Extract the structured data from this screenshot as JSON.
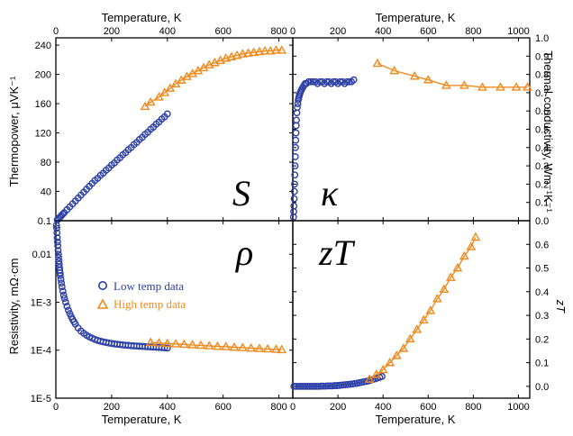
{
  "chart_data": [
    {
      "id": "S",
      "type": "scatter",
      "panel_label": "S",
      "xlabel": "Temperature, K",
      "ylabel": "Thermopower, μVK⁻¹",
      "xlim": [
        0,
        850
      ],
      "ylim": [
        0,
        250
      ],
      "xticks": [
        0,
        200,
        400,
        600,
        800
      ],
      "yticks": [
        0.1,
        40,
        80,
        120,
        160,
        200,
        240
      ],
      "yticklabels": [
        "0.1",
        "40",
        "80",
        "120",
        "160",
        "200",
        "240"
      ],
      "series": [
        {
          "color": "#2b3fa6",
          "marker": "circle",
          "line": false,
          "x": [
            5,
            10,
            15,
            20,
            25,
            30,
            40,
            50,
            60,
            70,
            80,
            90,
            100,
            110,
            120,
            130,
            140,
            150,
            160,
            170,
            180,
            190,
            200,
            210,
            220,
            230,
            240,
            250,
            260,
            270,
            280,
            290,
            300,
            310,
            320,
            330,
            340,
            350,
            360,
            370,
            380,
            390,
            400
          ],
          "y": [
            1,
            3,
            5,
            7,
            9,
            11,
            15,
            19,
            23,
            27,
            31,
            35,
            39,
            43,
            47,
            51,
            55,
            58,
            62,
            65,
            69,
            72,
            76,
            79,
            83,
            86,
            90,
            93,
            97,
            100,
            104,
            107,
            111,
            114,
            118,
            121,
            125,
            128,
            132,
            135,
            139,
            142,
            146
          ]
        },
        {
          "color": "#f08a1d",
          "marker": "triangle",
          "line": true,
          "x": [
            320,
            340,
            370,
            390,
            410,
            430,
            450,
            470,
            490,
            510,
            530,
            550,
            570,
            590,
            610,
            630,
            650,
            670,
            690,
            710,
            730,
            750,
            770,
            790,
            810
          ],
          "y": [
            156,
            162,
            169,
            175,
            181,
            187,
            192,
            197,
            201,
            205,
            209,
            213,
            216,
            219,
            222,
            224,
            226,
            228,
            229,
            230,
            231,
            232,
            232,
            233,
            233
          ]
        }
      ]
    },
    {
      "id": "kappa",
      "type": "scatter",
      "panel_label": "κ",
      "xlabel": "Temperature, K",
      "ylabel": "Thermal conductivity, Wm⁻¹K⁻¹",
      "xlim": [
        0,
        1050
      ],
      "ylim": [
        0,
        1.0
      ],
      "xticks": [
        0,
        200,
        400,
        600,
        800,
        1000
      ],
      "yticks": [
        0.0,
        0.1,
        0.2,
        0.3,
        0.4,
        0.5,
        0.6,
        0.7,
        0.8,
        0.9,
        1.0
      ],
      "yticklabels": [
        "0.0",
        "0.1",
        "0.2",
        "0.3",
        "0.4",
        "0.5",
        "0.6",
        "0.7",
        "0.8",
        "0.9",
        "1.0"
      ],
      "series": [
        {
          "color": "#2b3fa6",
          "marker": "circle",
          "line": false,
          "x": [
            3,
            4,
            5,
            6,
            7,
            8,
            9,
            10,
            11,
            12,
            13,
            14,
            15,
            16,
            18,
            20,
            22,
            24,
            26,
            28,
            30,
            33,
            36,
            40,
            45,
            50,
            55,
            60,
            70,
            80,
            90,
            100,
            110,
            120,
            130,
            140,
            150,
            160,
            170,
            180,
            190,
            200,
            210,
            220,
            230,
            240,
            250,
            260,
            270
          ],
          "y": [
            0.02,
            0.05,
            0.08,
            0.12,
            0.16,
            0.2,
            0.25,
            0.3,
            0.35,
            0.4,
            0.44,
            0.48,
            0.52,
            0.55,
            0.59,
            0.62,
            0.64,
            0.66,
            0.67,
            0.68,
            0.69,
            0.7,
            0.71,
            0.72,
            0.73,
            0.74,
            0.75,
            0.75,
            0.76,
            0.76,
            0.76,
            0.76,
            0.75,
            0.76,
            0.76,
            0.75,
            0.76,
            0.76,
            0.75,
            0.76,
            0.76,
            0.75,
            0.76,
            0.76,
            0.75,
            0.76,
            0.76,
            0.76,
            0.77
          ]
        },
        {
          "color": "#f08a1d",
          "marker": "triangle",
          "line": true,
          "x": [
            375,
            450,
            540,
            600,
            680,
            760,
            840,
            920,
            990,
            1040
          ],
          "y": [
            0.86,
            0.82,
            0.79,
            0.77,
            0.74,
            0.74,
            0.73,
            0.73,
            0.73,
            0.73
          ]
        }
      ]
    },
    {
      "id": "rho",
      "type": "scatter",
      "panel_label": "ρ",
      "xlabel": "Temperature, K",
      "ylabel": "Resistivity, mΩ·cm",
      "yscale": "log",
      "xlim": [
        0,
        850
      ],
      "ylim": [
        1e-05,
        0.05
      ],
      "xticks": [
        0,
        200,
        400,
        600,
        800
      ],
      "yticks": [
        1e-05,
        0.0001,
        0.001,
        0.01
      ],
      "yticklabels": [
        "1E-5",
        "1E-4",
        "1E-3",
        "0.01"
      ],
      "legend": {
        "position": "center",
        "entries": [
          {
            "label": "Low temp data",
            "color": "#2b3fa6",
            "marker": "circle"
          },
          {
            "label": "High temp data",
            "color": "#f08a1d",
            "marker": "triangle"
          }
        ]
      },
      "series": [
        {
          "color": "#2b3fa6",
          "marker": "circle",
          "line": false,
          "x": [
            2,
            3,
            4,
            5,
            6,
            7,
            8,
            9,
            10,
            11,
            12,
            13,
            14,
            15,
            16,
            18,
            20,
            22,
            25,
            28,
            31,
            35,
            40,
            45,
            50,
            55,
            60,
            65,
            70,
            80,
            90,
            100,
            110,
            120,
            130,
            140,
            150,
            160,
            170,
            180,
            190,
            200,
            210,
            220,
            230,
            240,
            250,
            260,
            270,
            280,
            290,
            300,
            310,
            320,
            330,
            340,
            350,
            360,
            370,
            380,
            390,
            400
          ],
          "y": [
            0.04,
            0.035,
            0.028,
            0.022,
            0.018,
            0.015,
            0.012,
            0.01,
            0.0085,
            0.0072,
            0.0062,
            0.0053,
            0.0046,
            0.0041,
            0.0036,
            0.003,
            0.0025,
            0.0021,
            0.0017,
            0.0014,
            0.0012,
            0.001,
            0.00082,
            0.00068,
            0.00058,
            0.0005,
            0.00044,
            0.00039,
            0.00035,
            0.00029,
            0.00025,
            0.000225,
            0.000205,
            0.00019,
            0.000178,
            0.000168,
            0.00016,
            0.000154,
            0.000149,
            0.000145,
            0.000141,
            0.000138,
            0.000135,
            0.000133,
            0.000131,
            0.000129,
            0.000127,
            0.000126,
            0.000124,
            0.000123,
            0.000122,
            0.000121,
            0.00012,
            0.000119,
            0.000118,
            0.000117,
            0.000116,
            0.000115,
            0.000114,
            0.000113,
            0.000112,
            0.000111
          ]
        },
        {
          "color": "#f08a1d",
          "marker": "triangle",
          "line": true,
          "x": [
            340,
            370,
            400,
            430,
            460,
            490,
            520,
            550,
            580,
            610,
            640,
            670,
            700,
            730,
            760,
            790,
            810
          ],
          "y": [
            0.000145,
            0.000141,
            0.000138,
            0.000135,
            0.000132,
            0.000129,
            0.000126,
            0.000123,
            0.00012,
            0.000118,
            0.000115,
            0.000113,
            0.00011,
            0.000108,
            0.000106,
            0.000104,
            0.000102
          ]
        }
      ]
    },
    {
      "id": "zT",
      "type": "scatter",
      "panel_label": "zT",
      "xlabel": "Temperature, K",
      "ylabel": "zT",
      "xlim": [
        0,
        1050
      ],
      "ylim": [
        -0.05,
        0.7
      ],
      "xticks": [
        0,
        200,
        400,
        600,
        800,
        1000
      ],
      "yticks": [
        0.0,
        0.1,
        0.2,
        0.3,
        0.4,
        0.5,
        0.6
      ],
      "yticklabels": [
        "0.0",
        "0.1",
        "0.2",
        "0.3",
        "0.4",
        "0.5",
        "0.6"
      ],
      "series": [
        {
          "color": "#2b3fa6",
          "marker": "circle",
          "line": false,
          "x": [
            5,
            15,
            25,
            35,
            45,
            55,
            65,
            75,
            85,
            95,
            105,
            115,
            125,
            135,
            145,
            155,
            165,
            175,
            185,
            195,
            205,
            215,
            225,
            235,
            245,
            255,
            265,
            275,
            285,
            295,
            305,
            315,
            325,
            335,
            345,
            355,
            365,
            375,
            385,
            395
          ],
          "y": [
            0.0,
            0.0,
            0.0,
            0.0,
            0.0,
            0.0,
            0.0,
            0.0,
            0.0,
            0.0,
            0.0,
            0.0,
            0.001,
            0.001,
            0.001,
            0.002,
            0.002,
            0.002,
            0.003,
            0.003,
            0.004,
            0.005,
            0.006,
            0.007,
            0.008,
            0.009,
            0.01,
            0.012,
            0.013,
            0.015,
            0.017,
            0.019,
            0.021,
            0.023,
            0.026,
            0.029,
            0.032,
            0.035,
            0.038,
            0.042
          ]
        },
        {
          "color": "#f08a1d",
          "marker": "triangle",
          "line": true,
          "x": [
            340,
            370,
            400,
            430,
            460,
            490,
            520,
            550,
            580,
            610,
            640,
            670,
            700,
            730,
            760,
            790,
            810
          ],
          "y": [
            0.03,
            0.05,
            0.07,
            0.1,
            0.13,
            0.16,
            0.2,
            0.24,
            0.28,
            0.32,
            0.37,
            0.41,
            0.46,
            0.5,
            0.55,
            0.59,
            0.63
          ]
        }
      ]
    }
  ]
}
